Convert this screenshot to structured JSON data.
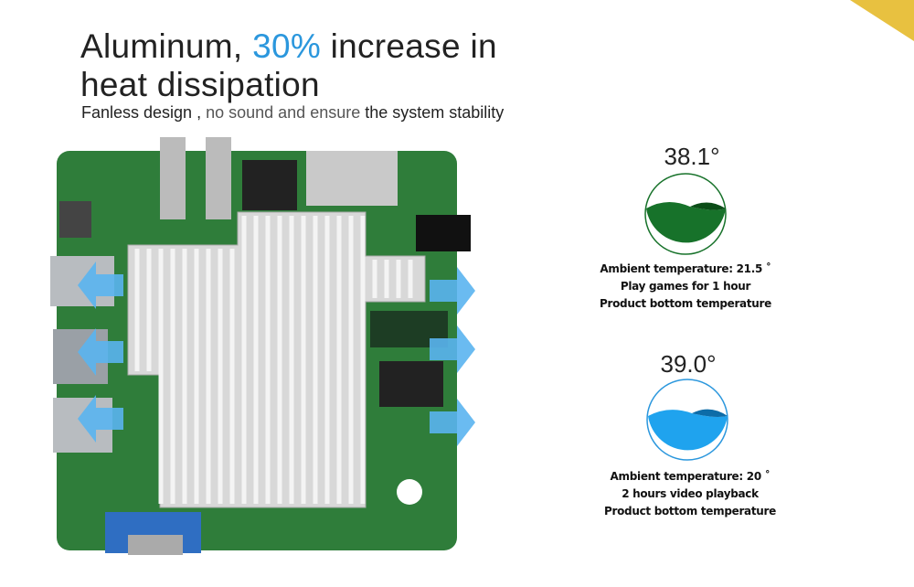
{
  "headline": {
    "part1": "Aluminum, ",
    "highlight": "30%",
    "part2": " increase in",
    "line2": "heat dissipation"
  },
  "subtitle": {
    "a": "Fanless design ,",
    "b": "no sound and ensure",
    "c": " the system stability"
  },
  "readings": [
    {
      "temperature": "38.1°",
      "fill_color": "#17722a",
      "lines": [
        "Ambient temperature: 21.5 ˚",
        "Play games for 1 hour",
        "Product bottom temperature"
      ]
    },
    {
      "temperature": "39.0°",
      "fill_color": "#1fa3ee",
      "lines": [
        "Ambient temperature: 20 ˚",
        "2 hours video playback",
        "Product bottom temperature"
      ]
    }
  ],
  "colors": {
    "accent": "#2b97dd",
    "board": "#2f7d3a",
    "heatsink": "#d8d8d8",
    "airflow_arrow": "#5ab4ef"
  }
}
